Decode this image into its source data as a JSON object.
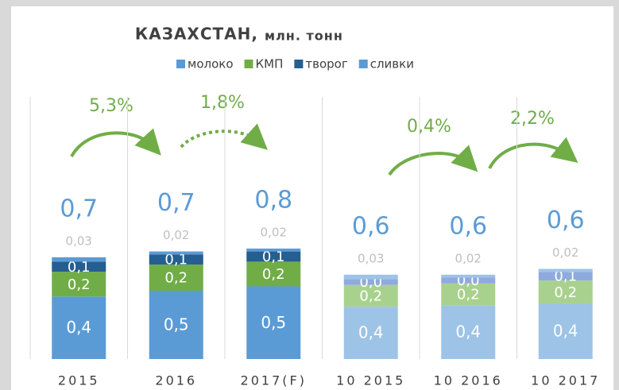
{
  "chart_data": {
    "type": "stacked_bar",
    "title": "КАЗАХСТАН,",
    "subtitle": "млн. тонн",
    "categories": [
      "2015",
      "2016",
      "2017(F)",
      "10  2015",
      "10  2016",
      "10  2017"
    ],
    "series": [
      {
        "name": "молоко",
        "color": "#5b9bd5",
        "colors": [
          "#5b9bd5",
          "#5b9bd5",
          "#5b9bd5",
          "#9dc3e6",
          "#9dc3e6",
          "#9dc3e6"
        ],
        "values": [
          0.43,
          0.47,
          0.5,
          0.36,
          0.37,
          0.38
        ],
        "value_labels": [
          "0,4",
          "0,5",
          "0,5",
          "0,4",
          "0,4",
          "0,4"
        ]
      },
      {
        "name": "КМП",
        "color": "#70ad47",
        "colors": [
          "#70ad47",
          "#70ad47",
          "#70ad47",
          "#a9d18e",
          "#a9d18e",
          "#a9d18e"
        ],
        "values": [
          0.17,
          0.18,
          0.17,
          0.15,
          0.15,
          0.16
        ],
        "value_labels": [
          "0,2",
          "0,2",
          "0,2",
          "0,2",
          "0,2",
          "0,2"
        ]
      },
      {
        "name": "творог",
        "color": "#255e91",
        "colors": [
          "#255e91",
          "#255e91",
          "#255e91",
          "#8faadc",
          "#8faadc",
          "#8faadc"
        ],
        "values": [
          0.07,
          0.07,
          0.07,
          0.04,
          0.04,
          0.06
        ],
        "value_labels": [
          "0,1",
          "0,1",
          "0,1",
          "0,0",
          "0,0",
          "0,1"
        ]
      },
      {
        "name": "сливки",
        "color": "#5b9bd5",
        "colors": [
          "#5b9bd5",
          "#5b9bd5",
          "#5b9bd5",
          "#9dc3e6",
          "#9dc3e6",
          "#9dc3e6"
        ],
        "values": [
          0.03,
          0.02,
          0.02,
          0.03,
          0.02,
          0.02
        ],
        "value_labels": [
          "0,03",
          "0,02",
          "0,02",
          "0,03",
          "0,02",
          "0,02"
        ]
      }
    ],
    "total_labels": [
      "0,7",
      "0,7",
      "0,8",
      "0,6",
      "0,6",
      "0,6"
    ],
    "growth_labels": [
      "5,3%",
      "1,8%",
      "0,4%",
      "2,2%"
    ]
  }
}
